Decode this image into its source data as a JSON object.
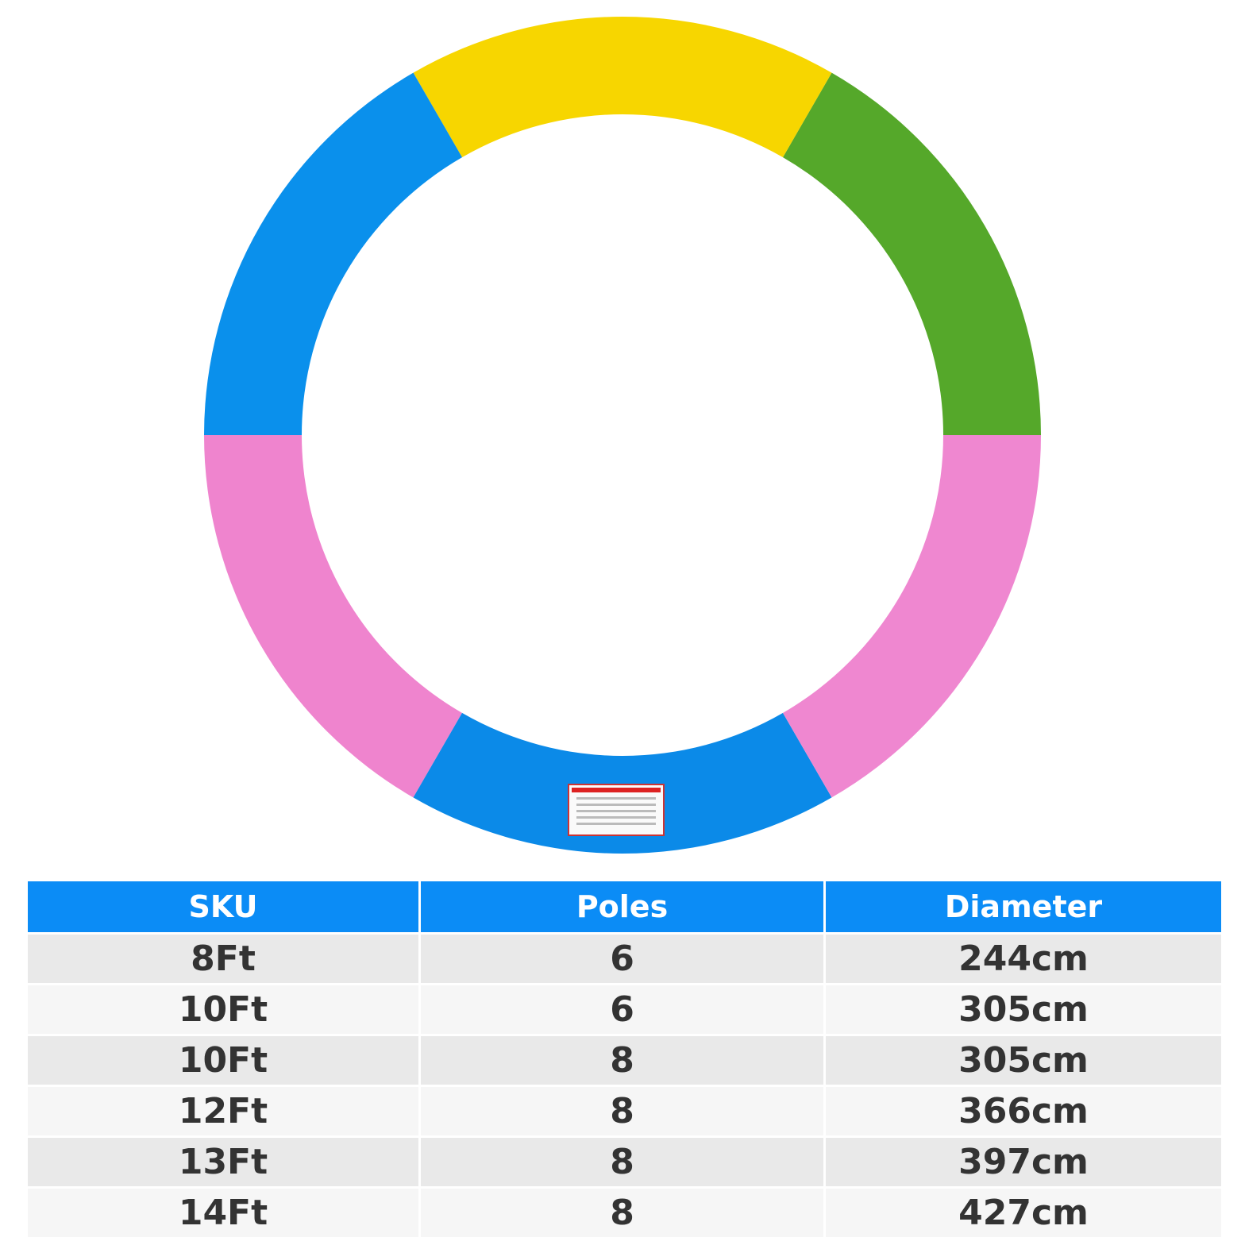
{
  "table": {
    "headers": [
      "SKU",
      "Poles",
      "Diameter"
    ],
    "rows": [
      [
        "8Ft",
        "6",
        "244cm"
      ],
      [
        "10Ft",
        "6",
        "305cm"
      ],
      [
        "10Ft",
        "8",
        "305cm"
      ],
      [
        "12Ft",
        "8",
        "366cm"
      ],
      [
        "13Ft",
        "8",
        "397cm"
      ],
      [
        "14Ft",
        "8",
        "427cm"
      ]
    ]
  }
}
